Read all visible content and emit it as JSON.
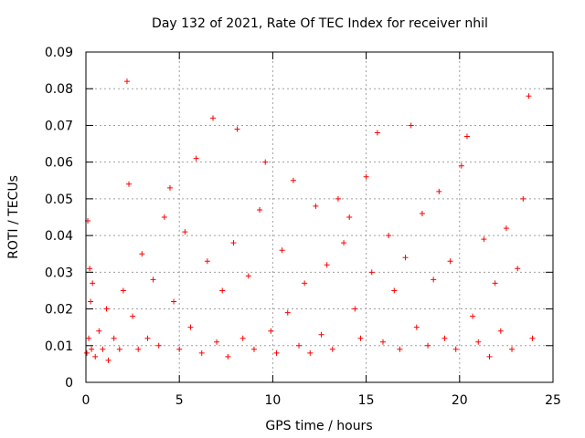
{
  "chart_data": {
    "type": "scatter",
    "title": "Day 132 of 2021, Rate Of TEC Index for receiver nhil",
    "xlabel": "GPS time / hours",
    "ylabel": "ROTI / TECUs",
    "xlim": [
      0,
      25
    ],
    "ylim": [
      0,
      0.09
    ],
    "xticks": [
      0,
      5,
      10,
      15,
      20,
      25
    ],
    "xtick_labels": [
      "0",
      "5",
      "10",
      "15",
      "20",
      "25"
    ],
    "yticks": [
      0,
      0.01,
      0.02,
      0.03,
      0.04,
      0.05,
      0.06,
      0.07,
      0.08,
      0.09
    ],
    "ytick_labels": [
      "0",
      "0.01",
      "0.02",
      "0.03",
      "0.04",
      "0.05",
      "0.06",
      "0.07",
      "0.08",
      "0.09"
    ],
    "grid": true,
    "marker": "+",
    "series_color": "#ff0000",
    "series": [
      {
        "name": "ROTI",
        "x": [
          0.05,
          0.1,
          0.15,
          0.2,
          0.25,
          0.3,
          0.35,
          0.5,
          0.7,
          0.9,
          1.1,
          1.2,
          1.5,
          1.8,
          2.0,
          2.2,
          2.3,
          2.5,
          2.8,
          3.0,
          3.3,
          3.6,
          3.9,
          4.2,
          4.5,
          4.7,
          5.0,
          5.3,
          5.6,
          5.9,
          6.2,
          6.5,
          6.8,
          7.0,
          7.3,
          7.6,
          7.9,
          8.1,
          8.4,
          8.7,
          9.0,
          9.3,
          9.6,
          9.9,
          10.2,
          10.5,
          10.8,
          11.1,
          11.4,
          11.7,
          12.0,
          12.3,
          12.6,
          12.9,
          13.2,
          13.5,
          13.8,
          14.1,
          14.4,
          14.7,
          15.0,
          15.3,
          15.6,
          15.9,
          16.2,
          16.5,
          16.8,
          17.1,
          17.4,
          17.7,
          18.0,
          18.3,
          18.6,
          18.9,
          19.2,
          19.5,
          19.8,
          20.1,
          20.4,
          20.7,
          21.0,
          21.3,
          21.6,
          21.9,
          22.2,
          22.5,
          22.8,
          23.1,
          23.4,
          23.7,
          23.9
        ],
        "y": [
          0.008,
          0.044,
          0.012,
          0.031,
          0.022,
          0.009,
          0.027,
          0.007,
          0.014,
          0.009,
          0.02,
          0.006,
          0.012,
          0.009,
          0.025,
          0.082,
          0.054,
          0.018,
          0.009,
          0.035,
          0.012,
          0.028,
          0.01,
          0.045,
          0.053,
          0.022,
          0.009,
          0.041,
          0.015,
          0.061,
          0.008,
          0.033,
          0.072,
          0.011,
          0.025,
          0.007,
          0.038,
          0.069,
          0.012,
          0.029,
          0.009,
          0.047,
          0.06,
          0.014,
          0.008,
          0.036,
          0.019,
          0.055,
          0.01,
          0.027,
          0.008,
          0.048,
          0.013,
          0.032,
          0.009,
          0.05,
          0.038,
          0.045,
          0.02,
          0.012,
          0.056,
          0.03,
          0.068,
          0.011,
          0.04,
          0.025,
          0.009,
          0.034,
          0.07,
          0.015,
          0.046,
          0.01,
          0.028,
          0.052,
          0.012,
          0.033,
          0.009,
          0.059,
          0.067,
          0.018,
          0.011,
          0.039,
          0.007,
          0.027,
          0.014,
          0.042,
          0.009,
          0.031,
          0.05,
          0.078,
          0.012
        ]
      }
    ]
  }
}
